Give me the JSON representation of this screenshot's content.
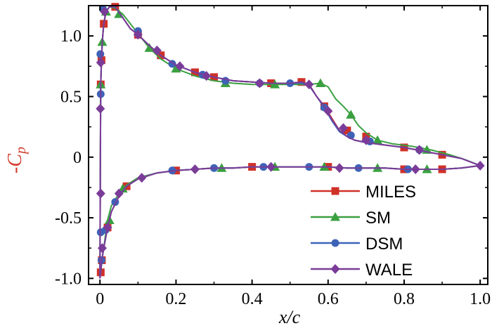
{
  "chart_data": {
    "type": "line",
    "xlabel": "x/c",
    "ylabel": "-C_p",
    "xlim": [
      -0.03,
      1.02
    ],
    "ylim": [
      -1.05,
      1.25
    ],
    "grid": false,
    "legend_position": "bottom-right",
    "x_ticks": [
      {
        "value": 0.0,
        "label": "0"
      },
      {
        "value": 0.2,
        "label": "0.2"
      },
      {
        "value": 0.4,
        "label": "0.4"
      },
      {
        "value": 0.6,
        "label": "0.6"
      },
      {
        "value": 0.8,
        "label": "0.8"
      },
      {
        "value": 1.0,
        "label": "1.0"
      }
    ],
    "y_ticks": [
      {
        "value": 1.0,
        "label": "1.0"
      },
      {
        "value": 0.5,
        "label": "0.5"
      },
      {
        "value": 0.0,
        "label": "0"
      },
      {
        "value": -0.5,
        "label": "-0.5"
      },
      {
        "value": -1.0,
        "label": "-1.0"
      }
    ],
    "series": [
      {
        "name": "MILES",
        "color": "#d03028",
        "marker": "square",
        "upper": {
          "x": [
            0.0,
            0.001,
            0.002,
            0.004,
            0.006,
            0.01,
            0.016,
            0.025,
            0.04,
            0.06,
            0.08,
            0.1,
            0.13,
            0.16,
            0.2,
            0.25,
            0.3,
            0.35,
            0.4,
            0.45,
            0.5,
            0.53,
            0.55,
            0.57,
            0.59,
            0.61,
            0.63,
            0.65,
            0.67,
            0.7,
            0.75,
            0.8,
            0.85,
            0.9,
            0.95,
            1.0
          ],
          "y": [
            -1.0,
            0.0,
            0.6,
            0.8,
            0.95,
            1.1,
            1.2,
            1.24,
            1.24,
            1.15,
            1.06,
            1.01,
            0.92,
            0.84,
            0.76,
            0.7,
            0.66,
            0.63,
            0.62,
            0.61,
            0.61,
            0.62,
            0.6,
            0.5,
            0.42,
            0.32,
            0.22,
            0.17,
            0.14,
            0.12,
            0.1,
            0.08,
            0.05,
            0.02,
            -0.01,
            -0.07
          ]
        },
        "lower": {
          "x": [
            0.0,
            0.002,
            0.005,
            0.01,
            0.02,
            0.03,
            0.05,
            0.07,
            0.1,
            0.15,
            0.2,
            0.25,
            0.3,
            0.35,
            0.4,
            0.45,
            0.5,
            0.55,
            0.6,
            0.65,
            0.7,
            0.75,
            0.8,
            0.85,
            0.9,
            0.95,
            1.0
          ],
          "y": [
            -1.0,
            -0.95,
            -0.85,
            -0.75,
            -0.58,
            -0.45,
            -0.32,
            -0.24,
            -0.18,
            -0.13,
            -0.11,
            -0.1,
            -0.09,
            -0.09,
            -0.08,
            -0.08,
            -0.08,
            -0.08,
            -0.08,
            -0.09,
            -0.09,
            -0.09,
            -0.1,
            -0.1,
            -0.1,
            -0.09,
            -0.07
          ]
        },
        "marker_points": [
          [
            0.002,
            0.6
          ],
          [
            0.004,
            0.8
          ],
          [
            0.01,
            1.1
          ],
          [
            0.04,
            1.24
          ],
          [
            0.1,
            1.01
          ],
          [
            0.16,
            0.84
          ],
          [
            0.25,
            0.7
          ],
          [
            0.3,
            0.66
          ],
          [
            0.45,
            0.61
          ],
          [
            0.53,
            0.62
          ],
          [
            0.59,
            0.42
          ],
          [
            0.65,
            0.22
          ],
          [
            0.7,
            0.17
          ],
          [
            0.8,
            0.08
          ],
          [
            0.9,
            0.02
          ],
          [
            0.002,
            -0.95
          ],
          [
            0.005,
            -0.85
          ],
          [
            0.02,
            -0.58
          ],
          [
            0.07,
            -0.24
          ],
          [
            0.2,
            -0.11
          ],
          [
            0.4,
            -0.08
          ],
          [
            0.6,
            -0.08
          ],
          [
            0.8,
            -0.1
          ],
          [
            0.9,
            -0.1
          ]
        ]
      },
      {
        "name": "SM",
        "color": "#3aa040",
        "marker": "triangle",
        "upper": {
          "x": [
            0.0,
            0.001,
            0.002,
            0.004,
            0.006,
            0.01,
            0.016,
            0.025,
            0.04,
            0.06,
            0.08,
            0.1,
            0.13,
            0.16,
            0.2,
            0.25,
            0.3,
            0.35,
            0.4,
            0.45,
            0.5,
            0.55,
            0.58,
            0.6,
            0.62,
            0.64,
            0.66,
            0.68,
            0.7,
            0.73,
            0.77,
            0.82,
            0.87,
            0.92,
            0.96,
            1.0
          ],
          "y": [
            -1.0,
            0.0,
            0.6,
            0.8,
            0.95,
            1.1,
            1.2,
            1.24,
            1.23,
            1.18,
            1.1,
            1.02,
            0.9,
            0.81,
            0.73,
            0.67,
            0.63,
            0.61,
            0.6,
            0.6,
            0.6,
            0.6,
            0.61,
            0.58,
            0.48,
            0.42,
            0.35,
            0.26,
            0.2,
            0.14,
            0.11,
            0.09,
            0.06,
            0.02,
            -0.02,
            -0.07
          ]
        },
        "lower": {
          "x": [
            0.0,
            0.002,
            0.005,
            0.01,
            0.02,
            0.03,
            0.05,
            0.07,
            0.1,
            0.15,
            0.2,
            0.25,
            0.3,
            0.35,
            0.4,
            0.45,
            0.5,
            0.55,
            0.6,
            0.65,
            0.7,
            0.75,
            0.8,
            0.85,
            0.9,
            0.95,
            1.0
          ],
          "y": [
            -1.0,
            -0.95,
            -0.85,
            -0.75,
            -0.52,
            -0.4,
            -0.3,
            -0.23,
            -0.17,
            -0.13,
            -0.11,
            -0.1,
            -0.09,
            -0.09,
            -0.08,
            -0.08,
            -0.08,
            -0.08,
            -0.08,
            -0.09,
            -0.09,
            -0.09,
            -0.1,
            -0.1,
            -0.1,
            -0.09,
            -0.07
          ]
        },
        "marker_points": [
          [
            0.002,
            0.6
          ],
          [
            0.006,
            0.95
          ],
          [
            0.016,
            1.2
          ],
          [
            0.05,
            1.18
          ],
          [
            0.13,
            0.9
          ],
          [
            0.2,
            0.73
          ],
          [
            0.33,
            0.61
          ],
          [
            0.46,
            0.6
          ],
          [
            0.58,
            0.61
          ],
          [
            0.66,
            0.35
          ],
          [
            0.73,
            0.14
          ],
          [
            0.86,
            0.06
          ],
          [
            0.025,
            -0.52
          ],
          [
            0.06,
            -0.26
          ],
          [
            0.32,
            -0.09
          ],
          [
            0.46,
            -0.08
          ],
          [
            0.59,
            -0.08
          ],
          [
            0.73,
            -0.09
          ],
          [
            0.86,
            -0.1
          ]
        ]
      },
      {
        "name": "DSM",
        "color": "#3d63b8",
        "marker": "circle",
        "upper": {
          "x": [
            0.0,
            0.001,
            0.002,
            0.004,
            0.006,
            0.01,
            0.016,
            0.025,
            0.04,
            0.06,
            0.08,
            0.1,
            0.13,
            0.16,
            0.2,
            0.25,
            0.3,
            0.35,
            0.4,
            0.45,
            0.5,
            0.53,
            0.55,
            0.57,
            0.59,
            0.61,
            0.63,
            0.65,
            0.67,
            0.7,
            0.75,
            0.8,
            0.85,
            0.9,
            0.95,
            1.0
          ],
          "y": [
            -1.0,
            0.0,
            0.6,
            0.8,
            0.95,
            1.1,
            1.2,
            1.24,
            1.24,
            1.15,
            1.06,
            1.01,
            0.92,
            0.84,
            0.76,
            0.7,
            0.66,
            0.63,
            0.62,
            0.61,
            0.61,
            0.61,
            0.59,
            0.5,
            0.41,
            0.3,
            0.21,
            0.17,
            0.14,
            0.12,
            0.1,
            0.08,
            0.05,
            0.02,
            -0.01,
            -0.07
          ]
        },
        "lower": {
          "x": [
            0.0,
            0.002,
            0.005,
            0.01,
            0.02,
            0.03,
            0.05,
            0.07,
            0.1,
            0.15,
            0.2,
            0.25,
            0.3,
            0.35,
            0.4,
            0.45,
            0.5,
            0.55,
            0.6,
            0.65,
            0.7,
            0.75,
            0.8,
            0.85,
            0.9,
            0.95,
            1.0
          ],
          "y": [
            -1.0,
            -0.95,
            -0.85,
            -0.75,
            -0.58,
            -0.45,
            -0.32,
            -0.24,
            -0.18,
            -0.13,
            -0.11,
            -0.1,
            -0.09,
            -0.09,
            -0.08,
            -0.08,
            -0.08,
            -0.08,
            -0.08,
            -0.09,
            -0.09,
            -0.09,
            -0.1,
            -0.1,
            -0.1,
            -0.09,
            -0.07
          ]
        },
        "marker_points": [
          [
            0.001,
            0.85
          ],
          [
            0.002,
            0.52
          ],
          [
            0.008,
            1.22
          ],
          [
            0.1,
            1.04
          ],
          [
            0.19,
            0.77
          ],
          [
            0.27,
            0.68
          ],
          [
            0.33,
            0.63
          ],
          [
            0.42,
            0.61
          ],
          [
            0.5,
            0.61
          ],
          [
            0.59,
            0.41
          ],
          [
            0.66,
            0.18
          ],
          [
            0.71,
            0.13
          ],
          [
            0.84,
            0.06
          ],
          [
            0.002,
            -0.62
          ],
          [
            0.004,
            -0.85
          ],
          [
            0.015,
            -0.6
          ],
          [
            0.04,
            -0.37
          ],
          [
            0.19,
            -0.11
          ],
          [
            0.3,
            -0.09
          ],
          [
            0.43,
            -0.08
          ],
          [
            0.55,
            -0.08
          ],
          [
            0.68,
            -0.09
          ],
          [
            0.81,
            -0.1
          ]
        ]
      },
      {
        "name": "WALE",
        "color": "#7a3c98",
        "marker": "diamond",
        "upper": {
          "x": [
            0.0,
            0.001,
            0.002,
            0.004,
            0.006,
            0.01,
            0.016,
            0.025,
            0.04,
            0.06,
            0.08,
            0.1,
            0.13,
            0.16,
            0.2,
            0.25,
            0.3,
            0.35,
            0.4,
            0.45,
            0.5,
            0.53,
            0.55,
            0.57,
            0.59,
            0.61,
            0.63,
            0.65,
            0.67,
            0.7,
            0.75,
            0.8,
            0.85,
            0.9,
            0.95,
            1.0
          ],
          "y": [
            -1.0,
            0.0,
            0.6,
            0.8,
            0.95,
            1.1,
            1.2,
            1.24,
            1.24,
            1.15,
            1.06,
            1.01,
            0.92,
            0.84,
            0.76,
            0.7,
            0.66,
            0.63,
            0.62,
            0.61,
            0.61,
            0.62,
            0.6,
            0.5,
            0.42,
            0.31,
            0.22,
            0.17,
            0.14,
            0.12,
            0.1,
            0.08,
            0.05,
            0.02,
            -0.01,
            -0.07
          ]
        },
        "lower": {
          "x": [
            0.0,
            0.002,
            0.005,
            0.01,
            0.02,
            0.03,
            0.05,
            0.07,
            0.1,
            0.15,
            0.2,
            0.25,
            0.3,
            0.35,
            0.4,
            0.45,
            0.5,
            0.55,
            0.6,
            0.65,
            0.7,
            0.75,
            0.8,
            0.85,
            0.9,
            0.95,
            1.0
          ],
          "y": [
            -1.0,
            -0.95,
            -0.85,
            -0.75,
            -0.58,
            -0.45,
            -0.32,
            -0.24,
            -0.18,
            -0.13,
            -0.11,
            -0.1,
            -0.09,
            -0.09,
            -0.08,
            -0.08,
            -0.08,
            -0.08,
            -0.08,
            -0.09,
            -0.09,
            -0.09,
            -0.1,
            -0.1,
            -0.1,
            -0.09,
            -0.07
          ]
        },
        "marker_points": [
          [
            0.001,
            0.4
          ],
          [
            0.002,
            0.78
          ],
          [
            0.012,
            1.2
          ],
          [
            0.1,
            1.01
          ],
          [
            0.15,
            0.88
          ],
          [
            0.21,
            0.75
          ],
          [
            0.28,
            0.67
          ],
          [
            0.42,
            0.61
          ],
          [
            0.55,
            0.6
          ],
          [
            0.6,
            0.38
          ],
          [
            0.64,
            0.24
          ],
          [
            0.7,
            0.14
          ],
          [
            0.84,
            0.06
          ],
          [
            0.002,
            -0.3
          ],
          [
            0.006,
            -0.75
          ],
          [
            0.02,
            -0.58
          ],
          [
            0.05,
            -0.3
          ],
          [
            0.11,
            -0.17
          ],
          [
            0.25,
            -0.1
          ],
          [
            0.45,
            -0.08
          ],
          [
            0.63,
            -0.09
          ],
          [
            0.83,
            -0.1
          ],
          [
            1.0,
            -0.07
          ]
        ]
      }
    ]
  }
}
